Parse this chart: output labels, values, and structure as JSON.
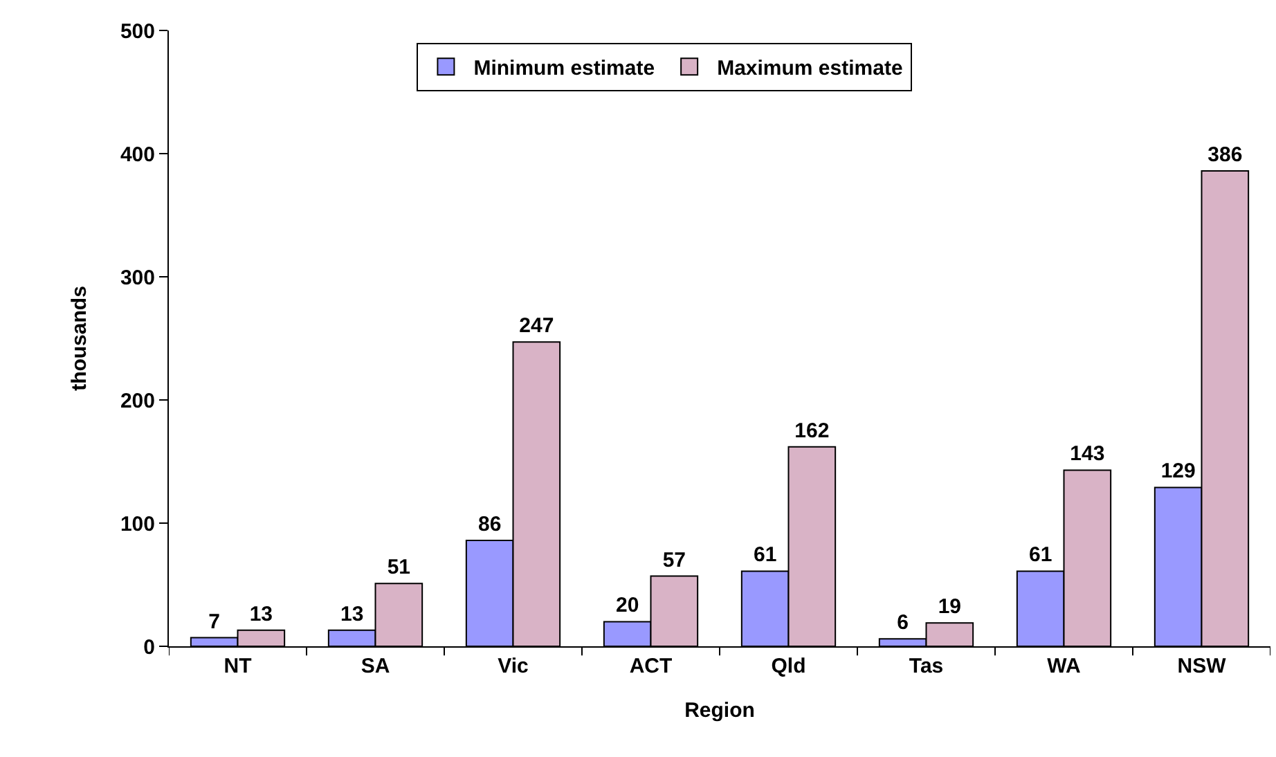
{
  "chart_data": {
    "type": "bar",
    "xlabel": "Region",
    "ylabel": "thousands",
    "categories": [
      "NT",
      "SA",
      "Vic",
      "ACT",
      "Qld",
      "Tas",
      "WA",
      "NSW"
    ],
    "series": [
      {
        "name": "Minimum estimate",
        "color": "#9999ff",
        "values": [
          7,
          13,
          86,
          20,
          61,
          6,
          61,
          129
        ]
      },
      {
        "name": "Maximum estimate",
        "color": "#d9b3c6",
        "values": [
          13,
          51,
          247,
          57,
          162,
          19,
          143,
          386
        ]
      }
    ],
    "ylim": [
      0,
      500
    ],
    "yticks": [
      0,
      100,
      200,
      300,
      400,
      500
    ],
    "grid": false,
    "legend": "top",
    "data_labels": true
  }
}
